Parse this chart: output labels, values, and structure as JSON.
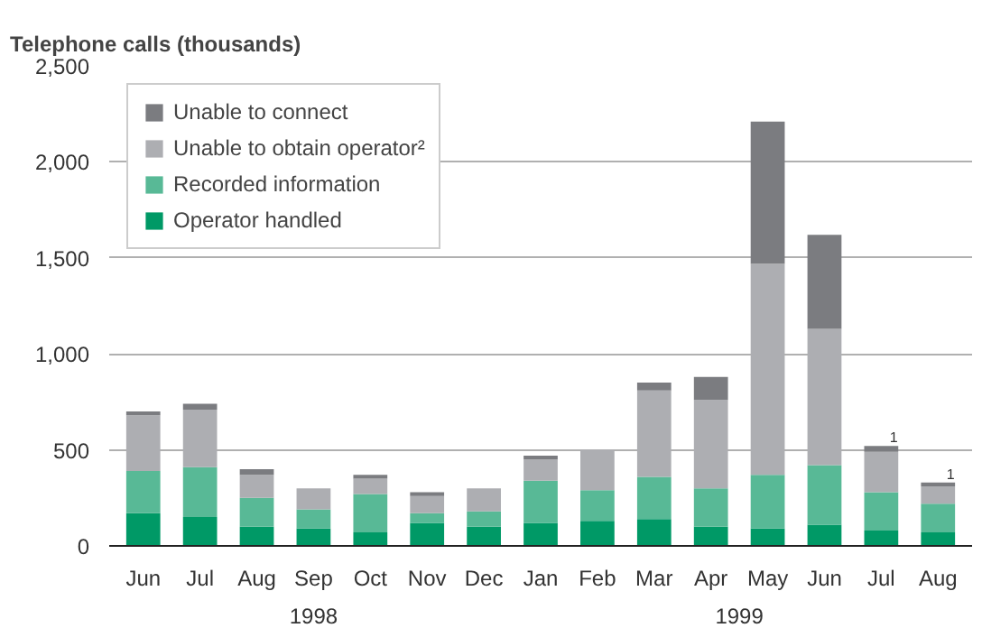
{
  "chart_data": {
    "type": "bar",
    "stacked": true,
    "title": "Telephone calls (thousands)",
    "categories": [
      "Jun",
      "Jul",
      "Aug",
      "Sep",
      "Oct",
      "Nov",
      "Dec",
      "Jan",
      "Feb",
      "Mar",
      "Apr",
      "May",
      "Jun",
      "Jul",
      "Aug"
    ],
    "series": [
      {
        "name": "Operator handled",
        "color": "#009966",
        "values": [
          170,
          150,
          100,
          90,
          70,
          120,
          100,
          120,
          130,
          140,
          100,
          90,
          110,
          80,
          70
        ]
      },
      {
        "name": "Recorded information",
        "color": "#58b996",
        "values": [
          220,
          260,
          150,
          100,
          200,
          50,
          80,
          220,
          160,
          220,
          200,
          280,
          310,
          200,
          150
        ]
      },
      {
        "name": "Unable to obtain operator²",
        "color": "#adaeb2",
        "values": [
          290,
          300,
          120,
          110,
          80,
          90,
          120,
          110,
          210,
          450,
          460,
          1100,
          710,
          210,
          90
        ]
      },
      {
        "name": "Unable to connect",
        "color": "#7b7c80",
        "values": [
          20,
          30,
          30,
          0,
          20,
          20,
          0,
          20,
          0,
          40,
          120,
          740,
          490,
          30,
          20
        ]
      }
    ],
    "ylim": [
      0,
      2500
    ],
    "yticks": [
      0,
      500,
      {
        "value": 1000,
        "label": "1,000"
      },
      {
        "value": 1500,
        "label": "1,500"
      },
      {
        "value": 2000,
        "label": "2,000"
      },
      {
        "value": 2500,
        "label": "2,500"
      }
    ],
    "grid": "y",
    "legend": "top left",
    "annotations": [
      "1998",
      "1999",
      "1",
      "1"
    ]
  }
}
